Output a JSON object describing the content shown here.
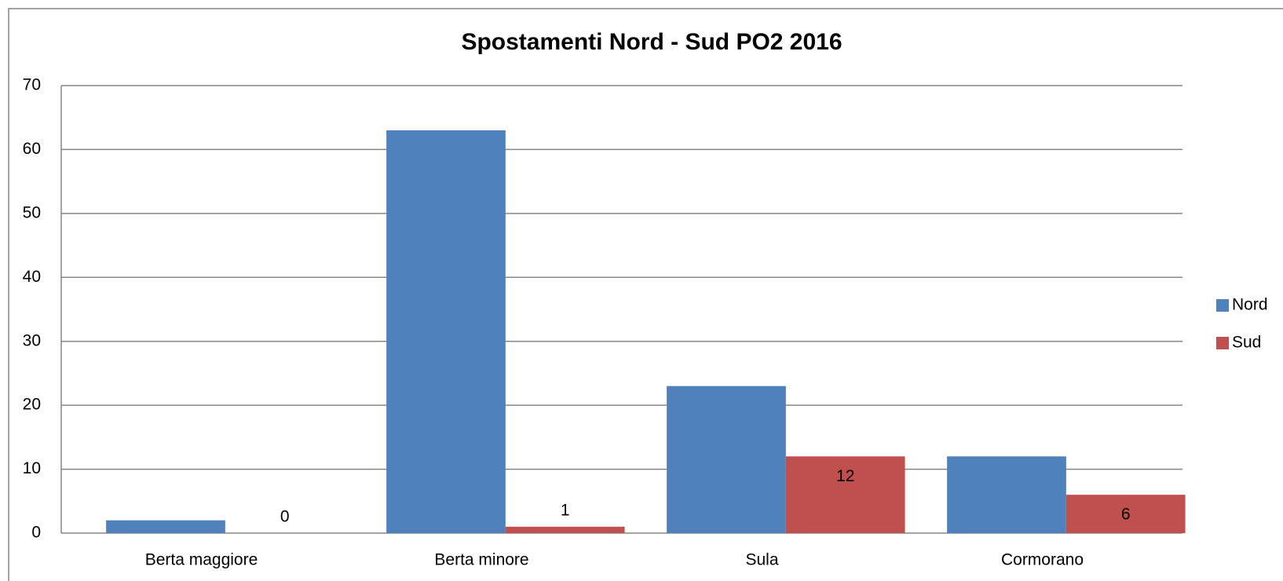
{
  "chart_data": {
    "type": "bar",
    "title": "Spostamenti Nord - Sud PO2 2016",
    "categories": [
      "Berta maggiore",
      "Berta minore",
      "Sula",
      "Cormorano"
    ],
    "series": [
      {
        "name": "Nord",
        "color": "#4f81bd",
        "values": [
          2,
          63,
          23,
          12
        ]
      },
      {
        "name": "Sud",
        "color": "#c0504d",
        "values": [
          0,
          1,
          12,
          6
        ],
        "data_labels": true
      }
    ],
    "ylim": [
      0,
      70
    ],
    "yticks": [
      0,
      10,
      20,
      30,
      40,
      50,
      60,
      70
    ],
    "grid": true,
    "legend": "right"
  }
}
